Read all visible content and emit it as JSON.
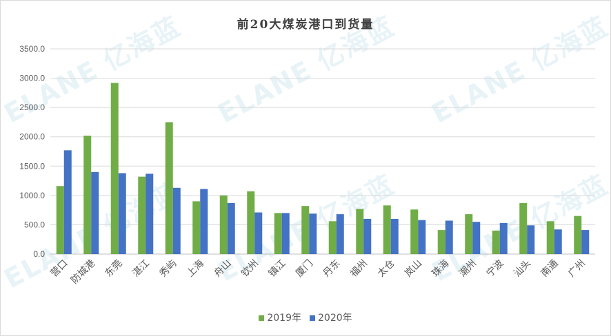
{
  "chart_data": {
    "type": "bar",
    "title": "前20大煤炭港口到货量",
    "categories": [
      "营口",
      "防城港",
      "东莞",
      "湛江",
      "秀屿",
      "上海",
      "舟山",
      "钦州",
      "镇江",
      "厦门",
      "丹东",
      "福州",
      "太仓",
      "岚山",
      "珠海",
      "潮州",
      "宁波",
      "汕头",
      "南通",
      "广州"
    ],
    "series": [
      {
        "name": "2019年",
        "color": "#70ad47",
        "values": [
          1160,
          2020,
          2920,
          1320,
          2250,
          900,
          1000,
          1070,
          700,
          820,
          560,
          770,
          830,
          760,
          410,
          680,
          400,
          870,
          560,
          650
        ]
      },
      {
        "name": "2020年",
        "color": "#4472c4",
        "values": [
          1770,
          1400,
          1380,
          1370,
          1130,
          1110,
          870,
          710,
          700,
          690,
          680,
          600,
          600,
          580,
          570,
          550,
          530,
          490,
          420,
          410
        ]
      }
    ],
    "yticks": [
      "0.0",
      "500.0",
      "1000.0",
      "1500.0",
      "2000.0",
      "2500.0",
      "3000.0",
      "3500.0"
    ],
    "ylim": [
      0,
      3500
    ],
    "grid": true,
    "legend_position": "bottom"
  },
  "watermark": {
    "text": "ELANE 亿海蓝"
  }
}
